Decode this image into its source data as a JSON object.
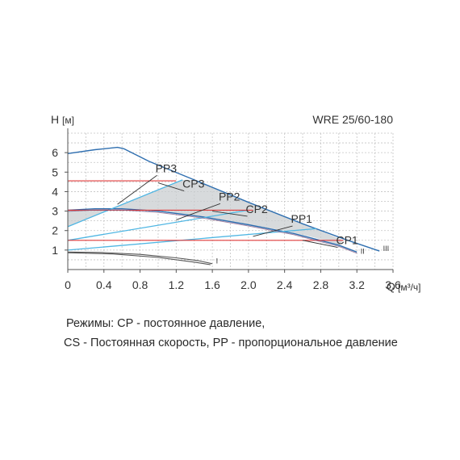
{
  "chart_data": {
    "type": "line",
    "title": "WRE 25/60-180",
    "ylabel": "H",
    "yunit": "[м]",
    "xlabel": "Q",
    "xunit": "[м³/ч]",
    "xlim": [
      0,
      3.6
    ],
    "ylim": [
      0,
      7
    ],
    "xticks": [
      "0",
      "0.4",
      "0.8",
      "1.2",
      "1.6",
      "2.0",
      "2.4",
      "2.8",
      "3.2",
      "3.6"
    ],
    "yticks": [
      "1",
      "2",
      "3",
      "4",
      "5",
      "6"
    ],
    "grid": true,
    "colors": {
      "max_curve": "#2f6fb0",
      "pp_line": "#4fb6e3",
      "cp_line": "#e03c3c",
      "speed_curve": "#7b4f7b",
      "min_curve": "#555555",
      "region_fill": "#c9cdd0"
    },
    "series": [
      {
        "name": "III",
        "kind": "speed-III",
        "points": [
          [
            0,
            5.95
          ],
          [
            0.3,
            6.15
          ],
          [
            0.55,
            6.27
          ],
          [
            0.62,
            6.2
          ],
          [
            0.9,
            5.55
          ],
          [
            1.4,
            4.6
          ],
          [
            2.0,
            3.45
          ],
          [
            2.6,
            2.35
          ],
          [
            3.1,
            1.5
          ],
          [
            3.45,
            0.95
          ]
        ]
      },
      {
        "name": "II",
        "kind": "speed-II",
        "points": [
          [
            0,
            3.05
          ],
          [
            0.3,
            3.12
          ],
          [
            0.6,
            3.12
          ],
          [
            1.0,
            3.0
          ],
          [
            1.5,
            2.7
          ],
          [
            2.0,
            2.3
          ],
          [
            2.5,
            1.85
          ],
          [
            3.0,
            1.25
          ],
          [
            3.2,
            0.9
          ]
        ]
      },
      {
        "name": "I",
        "kind": "speed-I",
        "points": [
          [
            0,
            0.9
          ],
          [
            0.4,
            0.87
          ],
          [
            0.8,
            0.78
          ],
          [
            1.2,
            0.6
          ],
          [
            1.45,
            0.45
          ],
          [
            1.6,
            0.3
          ]
        ]
      },
      {
        "name": "I",
        "kind": "speed-I-lower",
        "points": [
          [
            0,
            0.86
          ],
          [
            0.5,
            0.8
          ],
          [
            1.0,
            0.62
          ],
          [
            1.4,
            0.38
          ],
          [
            1.58,
            0.25
          ]
        ]
      },
      {
        "name": "PP3",
        "kind": "pp",
        "points": [
          [
            0,
            2.2
          ],
          [
            1.27,
            4.6
          ]
        ]
      },
      {
        "name": "PP2",
        "kind": "pp",
        "points": [
          [
            0,
            1.5
          ],
          [
            2.0,
            3.05
          ]
        ]
      },
      {
        "name": "PP1",
        "kind": "pp",
        "points": [
          [
            0,
            1.0
          ],
          [
            2.75,
            2.1
          ]
        ]
      },
      {
        "name": "CP3",
        "kind": "cp",
        "points": [
          [
            0,
            4.55
          ],
          [
            1.2,
            4.55
          ]
        ]
      },
      {
        "name": "CP2",
        "kind": "cp",
        "points": [
          [
            0,
            3.05
          ],
          [
            2.05,
            3.05
          ]
        ]
      },
      {
        "name": "CP1",
        "kind": "cp",
        "points": [
          [
            0,
            1.5
          ],
          [
            3.05,
            1.5
          ]
        ]
      }
    ],
    "region": [
      [
        0,
        3.05
      ],
      [
        0.6,
        3.12
      ],
      [
        1.0,
        3.0
      ],
      [
        1.5,
        2.7
      ],
      [
        2.0,
        2.3
      ],
      [
        2.4,
        2.0
      ],
      [
        2.75,
        1.62
      ],
      [
        3.0,
        1.25
      ],
      [
        3.05,
        1.5
      ],
      [
        2.6,
        2.35
      ],
      [
        2.0,
        3.45
      ],
      [
        1.4,
        4.6
      ],
      [
        1.27,
        4.6
      ],
      [
        0,
        2.2
      ]
    ],
    "annotations": [
      {
        "text": "PP3",
        "at": [
          0.97,
          5.0
        ],
        "to": [
          0.55,
          3.35
        ]
      },
      {
        "text": "CP3",
        "at": [
          1.27,
          4.2
        ],
        "to": [
          1.0,
          4.45
        ]
      },
      {
        "text": "PP2",
        "at": [
          1.67,
          3.55
        ],
        "to": [
          1.2,
          2.55
        ]
      },
      {
        "text": "CP2",
        "at": [
          1.97,
          2.9
        ],
        "to": [
          1.6,
          3.0
        ]
      },
      {
        "text": "PP1",
        "at": [
          2.47,
          2.4
        ],
        "to": [
          2.05,
          1.7
        ]
      },
      {
        "text": "CP1",
        "at": [
          2.97,
          1.3
        ],
        "to": [
          2.6,
          1.5
        ]
      }
    ],
    "curve_labels": [
      {
        "text": "III",
        "at": [
          3.49,
          0.95
        ]
      },
      {
        "text": "II",
        "at": [
          3.24,
          0.8
        ]
      },
      {
        "text": "I",
        "at": [
          1.64,
          0.32
        ]
      }
    ]
  },
  "caption": {
    "line1": "Режимы: CP - постоянное давление,",
    "line2": "CS - Постоянная скорость, PP - пропорциональное давление"
  }
}
